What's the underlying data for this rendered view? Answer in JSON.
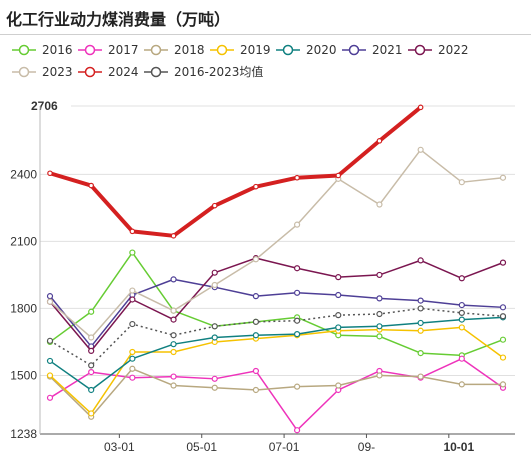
{
  "title": "化工行业动力煤消费量（万吨）",
  "chart_data": {
    "type": "line",
    "ylim": [
      1238,
      2706
    ],
    "yticks": [
      1238,
      1500,
      1800,
      2100,
      2400,
      2706
    ],
    "highlight_y": "2706",
    "xticks": [
      "03-01",
      "05-01",
      "07-01",
      "09-",
      "10-01"
    ],
    "highlight_x": "10-01",
    "grid": "horizontal",
    "legend_position": "top",
    "series": [
      {
        "name": "2016",
        "color": "#66cc33",
        "marker": "circle",
        "dash": false,
        "width": 1.5,
        "values": [
          1650,
          1785,
          2050,
          1790,
          1720,
          1740,
          1760,
          1680,
          1675,
          1600,
          1590,
          1660
        ]
      },
      {
        "name": "2017",
        "color": "#ee33bb",
        "marker": "circle",
        "dash": false,
        "width": 1.5,
        "values": [
          1400,
          1515,
          1490,
          1495,
          1485,
          1520,
          1255,
          1435,
          1520,
          1490,
          1575,
          1445
        ]
      },
      {
        "name": "2018",
        "color": "#b8a880",
        "marker": "circle",
        "dash": false,
        "width": 1.5,
        "values": [
          1495,
          1315,
          1530,
          1455,
          1445,
          1435,
          1450,
          1455,
          1500,
          1495,
          1460,
          1460
        ]
      },
      {
        "name": "2019",
        "color": "#f5c200",
        "marker": "circle",
        "dash": false,
        "width": 1.5,
        "values": [
          1500,
          1330,
          1605,
          1605,
          1650,
          1665,
          1680,
          1700,
          1705,
          1700,
          1715,
          1580
        ]
      },
      {
        "name": "2020",
        "color": "#108080",
        "marker": "circle",
        "dash": false,
        "width": 1.5,
        "values": [
          1565,
          1435,
          1575,
          1640,
          1670,
          1680,
          1685,
          1715,
          1720,
          1735,
          1750,
          1760
        ]
      },
      {
        "name": "2021",
        "color": "#4e3f96",
        "marker": "circle",
        "dash": false,
        "width": 1.5,
        "values": [
          1855,
          1630,
          1860,
          1930,
          1895,
          1855,
          1870,
          1860,
          1845,
          1835,
          1815,
          1805
        ]
      },
      {
        "name": "2022",
        "color": "#7b1650",
        "marker": "circle",
        "dash": false,
        "width": 1.5,
        "values": [
          1830,
          1610,
          1840,
          1750,
          1960,
          2025,
          1980,
          1940,
          1950,
          2015,
          1935,
          2005
        ]
      },
      {
        "name": "2023",
        "color": "#c8bca8",
        "marker": "circle",
        "dash": false,
        "width": 1.5,
        "values": [
          1830,
          1670,
          1880,
          1790,
          1905,
          2020,
          2175,
          2380,
          2265,
          2510,
          2365,
          2385
        ]
      },
      {
        "name": "2024",
        "color": "#d42020",
        "marker": "circle",
        "dash": false,
        "width": 4,
        "values": [
          2405,
          2350,
          2145,
          2125,
          2260,
          2345,
          2385,
          2395,
          2550,
          2700
        ]
      },
      {
        "name": "2016-2023均值",
        "color": "#555555",
        "marker": "circle",
        "dash": true,
        "width": 1.5,
        "values": [
          1655,
          1545,
          1730,
          1680,
          1720,
          1740,
          1745,
          1770,
          1775,
          1800,
          1780,
          1765
        ]
      }
    ]
  }
}
